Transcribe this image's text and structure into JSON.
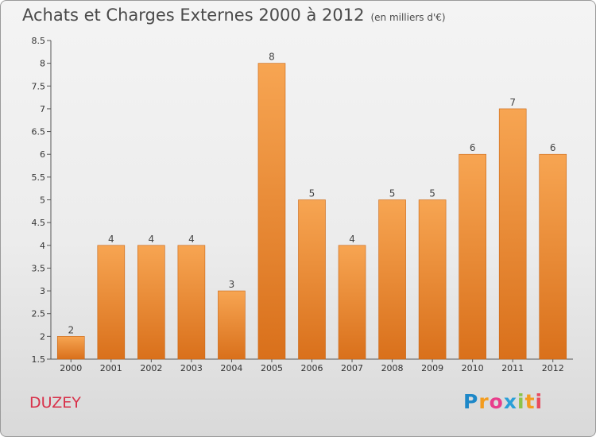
{
  "title": "Achats et Charges Externes 2000 à 2012",
  "subtitle": "(en milliers d'€)",
  "commune": "DUZEY",
  "logo": {
    "letters": [
      "P",
      "r",
      "o",
      "x",
      "i",
      "t",
      "i"
    ],
    "colors": [
      "#1e88c8",
      "#f39c1e",
      "#e83e8c",
      "#2a9fd8",
      "#8bc34a",
      "#f39c1e",
      "#e84a5f"
    ]
  },
  "chart_data": {
    "type": "bar",
    "categories": [
      "2000",
      "2001",
      "2002",
      "2003",
      "2004",
      "2005",
      "2006",
      "2007",
      "2008",
      "2009",
      "2010",
      "2011",
      "2012"
    ],
    "values": [
      2,
      4,
      4,
      4,
      3,
      8,
      5,
      4,
      5,
      5,
      6,
      7,
      6
    ],
    "data_labels": [
      "2",
      "4",
      "4",
      "4",
      "3",
      "8",
      "5",
      "4",
      "5",
      "5",
      "6",
      "7",
      "6"
    ],
    "ylim": [
      1.5,
      8.5
    ],
    "yticks": [
      1.5,
      2,
      2.5,
      3,
      3.5,
      4,
      4.5,
      5,
      5.5,
      6,
      6.5,
      7,
      7.5,
      8,
      8.5
    ],
    "ytick_labels": [
      "1.5",
      "2",
      "2.5",
      "3",
      "3.5",
      "4",
      "4.5",
      "5",
      "5.5",
      "6",
      "6.5",
      "7",
      "7.5",
      "8",
      "8.5"
    ],
    "grid": false,
    "bar_color": "#f0923a",
    "bar_color_dark": "#d9701b"
  }
}
